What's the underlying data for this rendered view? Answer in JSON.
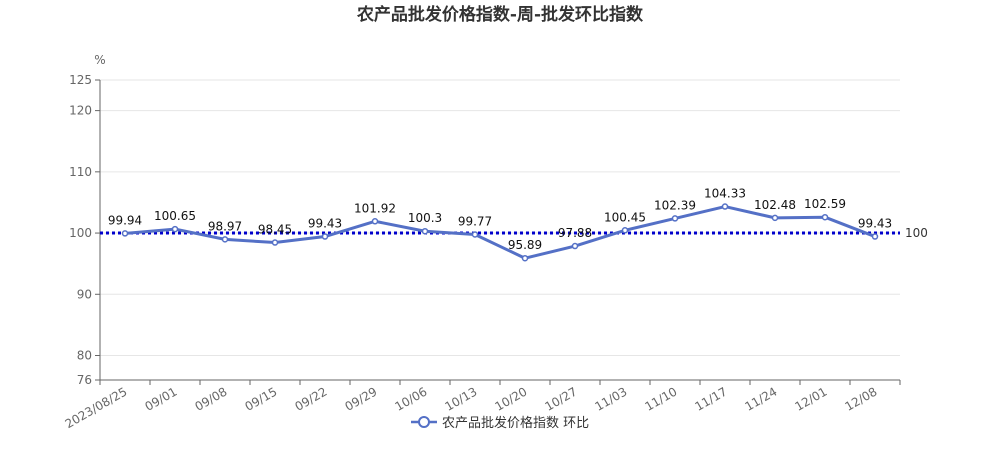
{
  "chart_data": {
    "type": "line",
    "title": "农产品批发价格指数-周-批发环比指数",
    "ylabel": "%",
    "ylim": [
      76,
      125
    ],
    "yticks": [
      76,
      80,
      90,
      100,
      110,
      120,
      125
    ],
    "categories": [
      "2023/08/25",
      "09/01",
      "09/08",
      "09/15",
      "09/22",
      "09/29",
      "10/06",
      "10/13",
      "10/20",
      "10/27",
      "11/03",
      "11/10",
      "11/17",
      "11/24",
      "12/01",
      "12/08"
    ],
    "series": [
      {
        "name": "农产品批发价格指数 环比",
        "values": [
          99.94,
          100.65,
          98.97,
          98.45,
          99.43,
          101.92,
          100.3,
          99.77,
          95.89,
          97.88,
          100.45,
          102.39,
          104.33,
          102.48,
          102.59,
          99.43
        ],
        "labels": [
          "99.94",
          "100.65",
          "98.97",
          "98.45",
          "99.43",
          "101.92",
          "100.3",
          "99.77",
          "95.89",
          "97.88",
          "100.45",
          "102.39",
          "104.33",
          "102.48",
          "102.59",
          "99.43"
        ]
      }
    ],
    "reference_line": {
      "value": 100,
      "label": "100"
    },
    "grid": true,
    "legend_position": "bottom",
    "colors": {
      "series": "#5470c6",
      "reference": "#0000cc",
      "grid": "#e6e6e6",
      "axis": "#666666"
    }
  }
}
